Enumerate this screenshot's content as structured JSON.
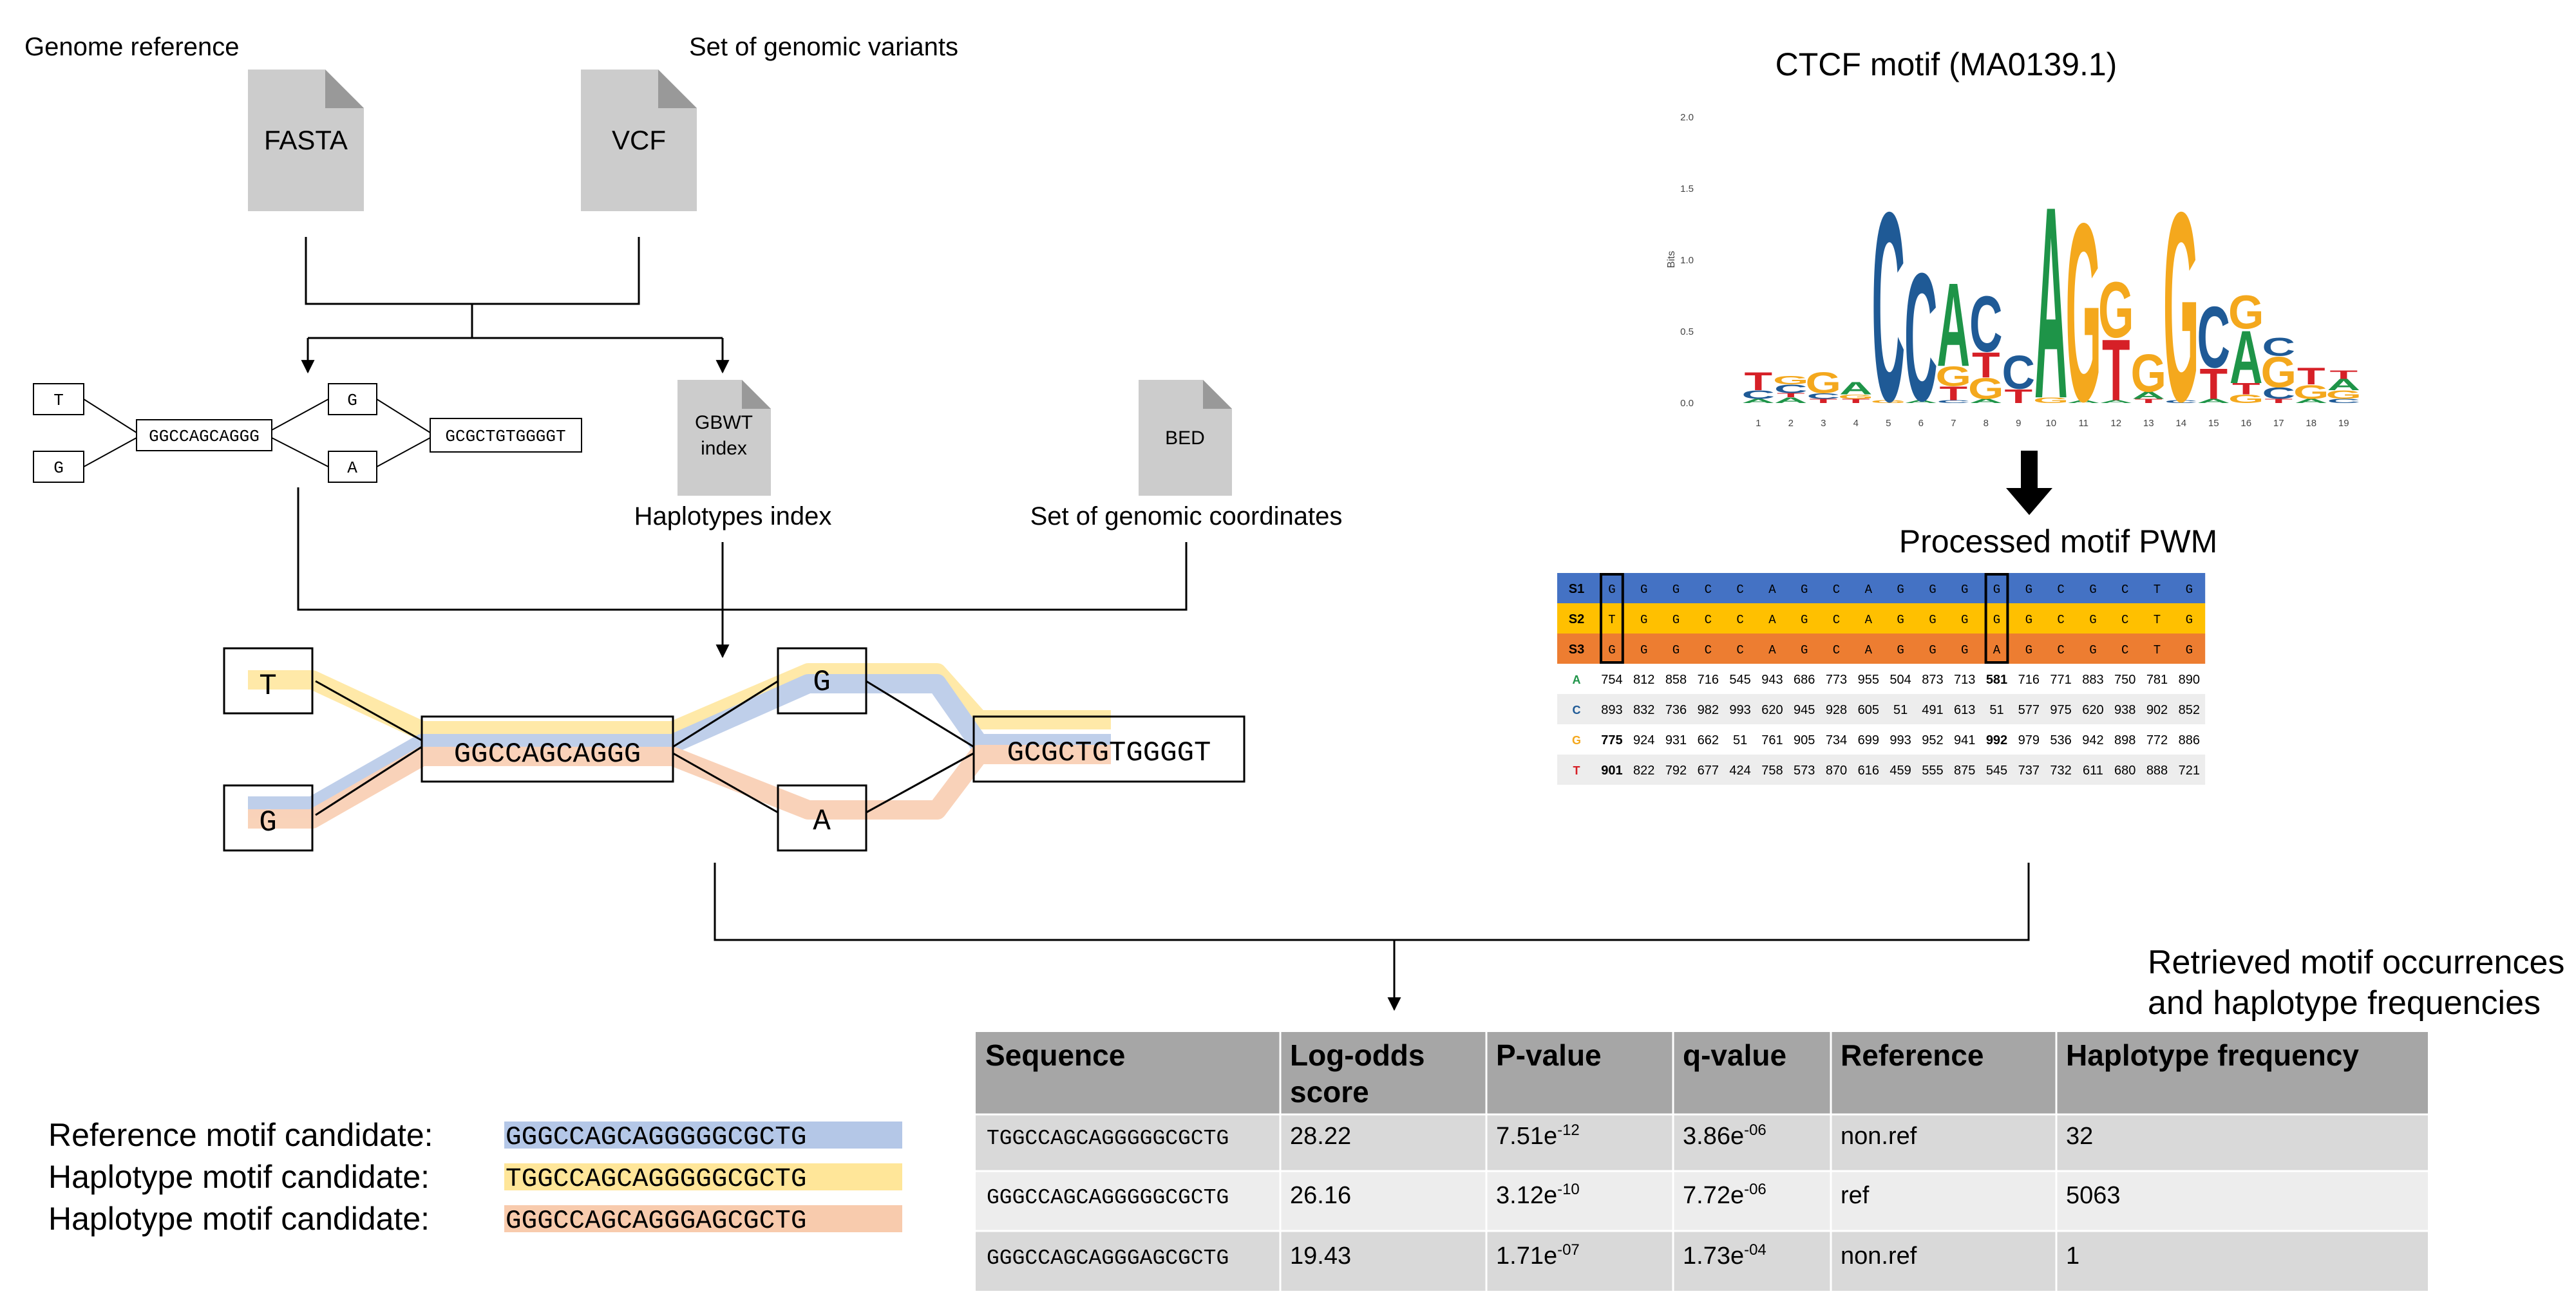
{
  "inputs": {
    "genome_reference_label": "Genome reference",
    "fasta_label": "FASTA",
    "variants_label": "Set of genomic variants",
    "vcf_label": "VCF",
    "gbwt_label_1": "GBWT",
    "gbwt_label_2": "index",
    "haplotypes_index_label": "Haplotypes index",
    "bed_label": "BED",
    "coordinates_label": "Set of genomic coordinates"
  },
  "small_graph": {
    "t": "T",
    "g_left": "G",
    "middle": "GGCCAGCAGGG",
    "g_top": "G",
    "a_bottom": "A",
    "right": "GCGCTGTGGGGT"
  },
  "big_graph": {
    "t": "T",
    "g_left": "G",
    "middle": "GGCCAGCAGGG",
    "g_top": "G",
    "a_bottom": "A",
    "right": "GCGCTGTGGGGT"
  },
  "colors": {
    "blue": "#4472c4",
    "yellow": "#ffc000",
    "orange": "#ed7d31",
    "blue_light": "#b4c7e7",
    "yellow_light": "#ffe699",
    "orange_light": "#f8cbad",
    "doc_grey": "#cccccc",
    "table_header": "#a6a6a6",
    "logo_A": "#1e9448",
    "logo_C": "#1f5a96",
    "logo_G": "#f4a81d",
    "logo_T": "#d62027"
  },
  "logo": {
    "title": "CTCF motif (MA0139.1)",
    "ylabel": "Bits",
    "yticks": [
      "2.0",
      "1.5",
      "1.0",
      "0.5",
      "0.0"
    ],
    "xticks": [
      "1",
      "2",
      "3",
      "4",
      "5",
      "6",
      "7",
      "8",
      "9",
      "10",
      "11",
      "12",
      "13",
      "14",
      "15",
      "16",
      "17",
      "18",
      "19"
    ],
    "columns": [
      [
        [
          "A",
          0.03
        ],
        [
          "C",
          0.06
        ],
        [
          "T",
          0.13
        ]
      ],
      [
        [
          "A",
          0.04
        ],
        [
          "T",
          0.03
        ],
        [
          "C",
          0.06
        ],
        [
          "G",
          0.06
        ]
      ],
      [
        [
          "T",
          0.03
        ],
        [
          "C",
          0.04
        ],
        [
          "G",
          0.15
        ]
      ],
      [
        [
          "T",
          0.03
        ],
        [
          "G",
          0.03
        ],
        [
          "A",
          0.09
        ]
      ],
      [
        [
          "G",
          0.02
        ],
        [
          "C",
          1.36
        ]
      ],
      [
        [
          "A",
          0.02
        ],
        [
          "C",
          0.92
        ]
      ],
      [
        [
          "C",
          0.02
        ],
        [
          "T",
          0.1
        ],
        [
          "G",
          0.14
        ],
        [
          "A",
          0.6
        ]
      ],
      [
        [
          "A",
          0.03
        ],
        [
          "G",
          0.15
        ],
        [
          "T",
          0.18
        ],
        [
          "C",
          0.4
        ]
      ],
      [
        [
          "T",
          0.1
        ],
        [
          "C",
          0.24
        ]
      ],
      [
        [
          "G",
          0.04
        ],
        [
          "A",
          1.38
        ]
      ],
      [
        [
          "A",
          0.02
        ],
        [
          "G",
          1.28
        ]
      ],
      [
        [
          "A",
          0.02
        ],
        [
          "T",
          0.44
        ],
        [
          "G",
          0.4
        ]
      ],
      [
        [
          "T",
          0.03
        ],
        [
          "A",
          0.05
        ],
        [
          "G",
          0.27
        ]
      ],
      [
        [
          "C",
          0.02
        ],
        [
          "G",
          1.36
        ]
      ],
      [
        [
          "A",
          0.03
        ],
        [
          "T",
          0.22
        ],
        [
          "C",
          0.44
        ]
      ],
      [
        [
          "G",
          0.06
        ],
        [
          "T",
          0.08
        ],
        [
          "A",
          0.38
        ],
        [
          "G",
          0.24
        ]
      ],
      [
        [
          "T",
          0.03
        ],
        [
          "C",
          0.08
        ],
        [
          "G",
          0.22
        ],
        [
          "C",
          0.13
        ]
      ],
      [
        [
          "A",
          0.03
        ],
        [
          "G",
          0.1
        ],
        [
          "T",
          0.12
        ]
      ],
      [
        [
          "C",
          0.03
        ],
        [
          "G",
          0.06
        ],
        [
          "A",
          0.08
        ],
        [
          "T",
          0.06
        ]
      ]
    ]
  },
  "pwm": {
    "title": "Processed motif PWM",
    "seq_rows": [
      {
        "label": "S1",
        "letters": [
          "G",
          "G",
          "G",
          "C",
          "C",
          "A",
          "G",
          "C",
          "A",
          "G",
          "G",
          "G",
          "G",
          "G",
          "C",
          "G",
          "C",
          "T",
          "G"
        ]
      },
      {
        "label": "S2",
        "letters": [
          "T",
          "G",
          "G",
          "C",
          "C",
          "A",
          "G",
          "C",
          "A",
          "G",
          "G",
          "G",
          "G",
          "G",
          "C",
          "G",
          "C",
          "T",
          "G"
        ]
      },
      {
        "label": "S3",
        "letters": [
          "G",
          "G",
          "G",
          "C",
          "C",
          "A",
          "G",
          "C",
          "A",
          "G",
          "G",
          "G",
          "A",
          "G",
          "C",
          "G",
          "C",
          "T",
          "G"
        ]
      }
    ],
    "count_rows": [
      {
        "label": "A",
        "values": [
          "754",
          "812",
          "858",
          "716",
          "545",
          "943",
          "686",
          "773",
          "955",
          "504",
          "873",
          "713",
          "581",
          "716",
          "771",
          "883",
          "750",
          "781",
          "890"
        ]
      },
      {
        "label": "C",
        "values": [
          "893",
          "832",
          "736",
          "982",
          "993",
          "620",
          "945",
          "928",
          "605",
          "51",
          "491",
          "613",
          "51",
          "577",
          "975",
          "620",
          "938",
          "902",
          "852"
        ]
      },
      {
        "label": "G",
        "values": [
          "775",
          "924",
          "931",
          "662",
          "51",
          "761",
          "905",
          "734",
          "699",
          "993",
          "952",
          "941",
          "992",
          "979",
          "536",
          "942",
          "898",
          "772",
          "886"
        ]
      },
      {
        "label": "T",
        "values": [
          "901",
          "822",
          "792",
          "677",
          "424",
          "758",
          "573",
          "870",
          "616",
          "459",
          "555",
          "875",
          "545",
          "737",
          "732",
          "611",
          "680",
          "888",
          "721"
        ]
      }
    ]
  },
  "results": {
    "caption_line1": "Retrieved motif occurrences",
    "caption_line2": "and haplotype frequencies",
    "headers": [
      "Sequence",
      "Log-odds",
      "score",
      "P-value",
      "q-value",
      "Reference",
      "Haplotype frequency"
    ],
    "rows": [
      {
        "sequence": "TGGCCAGCAGGGGGCGCTG",
        "score": "28.22",
        "p_base": "7.51e",
        "p_exp": "-12",
        "q_base": "3.86e",
        "q_exp": "-06",
        "reference": "non.ref",
        "freq": "32"
      },
      {
        "sequence": "GGGCCAGCAGGGGGCGCTG",
        "score": "26.16",
        "p_base": "3.12e",
        "p_exp": "-10",
        "q_base": "7.72e",
        "q_exp": "-06",
        "reference": "ref",
        "freq": "5063"
      },
      {
        "sequence": "GGGCCAGCAGGGAGCGCTG",
        "score": "19.43",
        "p_base": "1.71e",
        "p_exp": "-07",
        "q_base": "1.73e",
        "q_exp": "-04",
        "reference": "non.ref",
        "freq": "1"
      }
    ]
  },
  "candidates": [
    {
      "label": "Reference motif candidate:",
      "sequence": "GGGCCAGCAGGGGGCGCTG"
    },
    {
      "label": "Haplotype motif candidate:",
      "sequence": "TGGCCAGCAGGGGGCGCTG"
    },
    {
      "label": "Haplotype motif candidate:",
      "sequence": "GGGCCAGCAGGGAGCGCTG"
    }
  ]
}
